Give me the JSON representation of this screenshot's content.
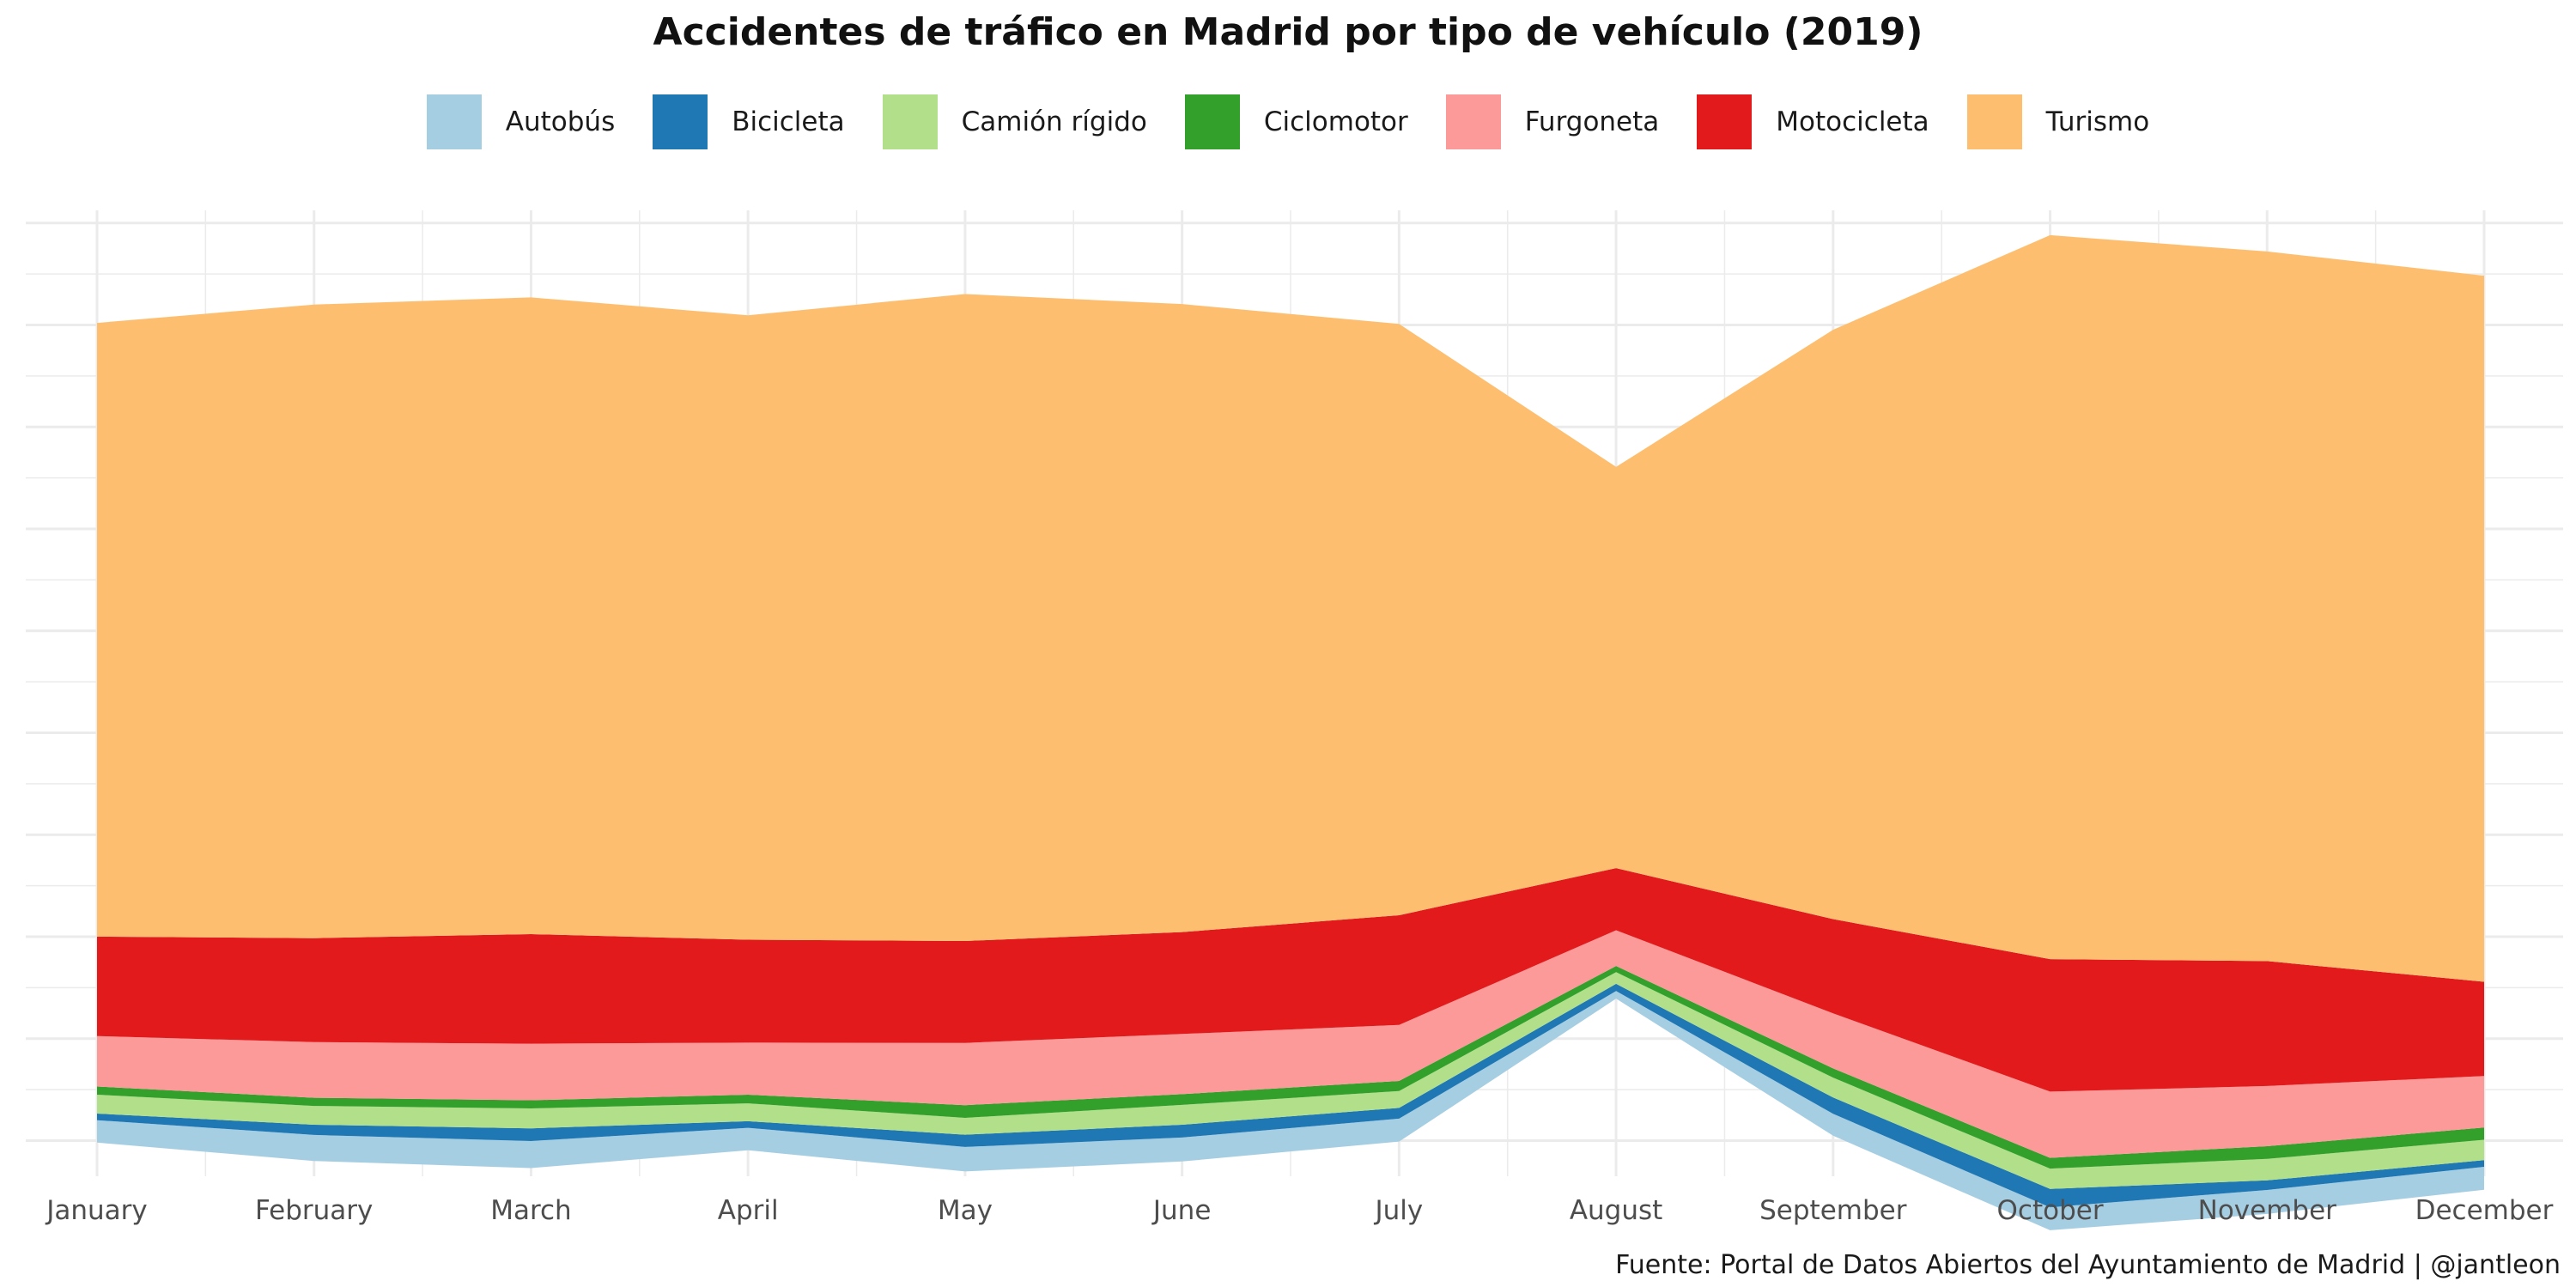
{
  "chart_data": {
    "type": "area",
    "stacking": "streamgraph",
    "title": "Accidentes de tráfico en Madrid por tipo de vehículo (2019)",
    "caption": "Fuente: Portal de Datos Abiertos del Ayuntamiento de Madrid | @jantleon",
    "xlabel": "",
    "ylabel": "",
    "y_axis_labels_shown": false,
    "grid": true,
    "legend_position": "top",
    "categories": [
      "January",
      "February",
      "March",
      "April",
      "May",
      "June",
      "July",
      "August",
      "September",
      "October",
      "November",
      "December"
    ],
    "series": [
      {
        "name": "Autobús",
        "color": "#A6CEE3",
        "values": [
          220,
          255,
          265,
          220,
          240,
          235,
          225,
          75,
          215,
          225,
          235,
          225
        ]
      },
      {
        "name": "Bicicleta",
        "color": "#1F78B4",
        "values": [
          65,
          100,
          125,
          65,
          120,
          125,
          105,
          70,
          160,
          180,
          95,
          65
        ]
      },
      {
        "name": "Camión rígido",
        "color": "#B2DF8A",
        "values": [
          185,
          185,
          195,
          175,
          165,
          195,
          165,
          115,
          195,
          200,
          210,
          200
        ]
      },
      {
        "name": "Ciclomotor",
        "color": "#33A02C",
        "values": [
          80,
          80,
          80,
          85,
          125,
          105,
          100,
          60,
          90,
          105,
          125,
          120
        ]
      },
      {
        "name": "Furgoneta",
        "color": "#FB9A99",
        "values": [
          495,
          545,
          555,
          510,
          610,
          590,
          550,
          350,
          540,
          650,
          590,
          505
        ]
      },
      {
        "name": "Motocicleta",
        "color": "#E31A1C",
        "values": [
          975,
          1020,
          1075,
          1010,
          1000,
          1000,
          1075,
          610,
          925,
          1300,
          1225,
          925
        ]
      },
      {
        "name": "Turismo",
        "color": "#FDBF6F",
        "values": [
          6020,
          6215,
          6245,
          6125,
          6345,
          6160,
          5800,
          3935,
          5780,
          7100,
          6960,
          6925
        ]
      }
    ]
  }
}
